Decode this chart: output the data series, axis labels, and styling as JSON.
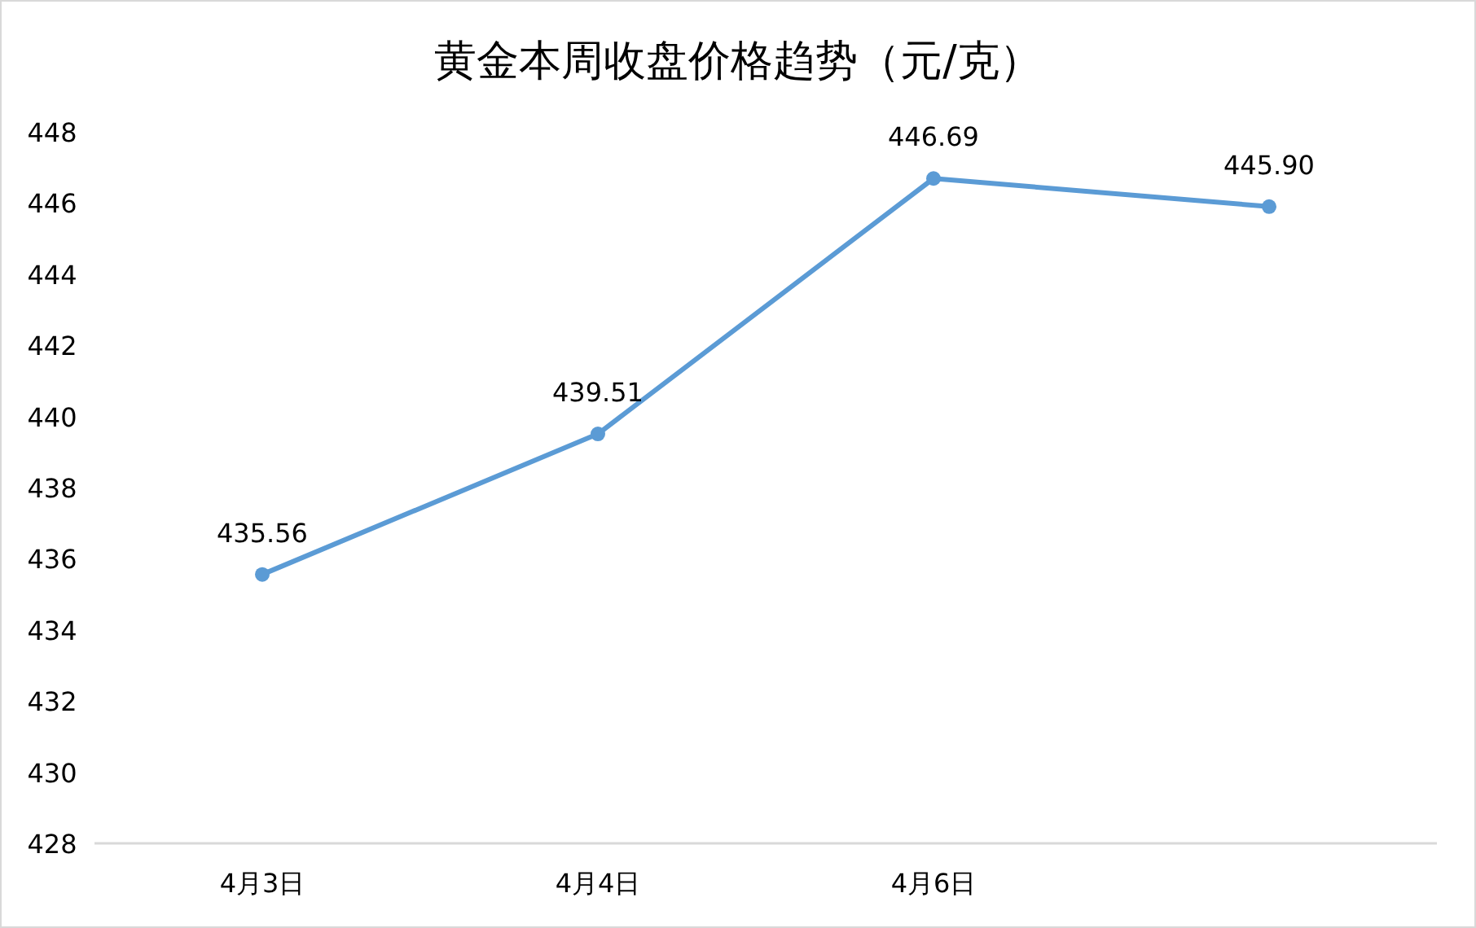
{
  "chart_data": {
    "type": "line",
    "title": "黄金本周收盘价格趋势（元/克）",
    "categories": [
      "4月3日",
      "4月4日",
      "4月6日",
      null
    ],
    "series": [
      {
        "color": "#5b9bd5",
        "values": [
          435.56,
          439.51,
          446.69,
          445.9
        ]
      }
    ],
    "value_labels": [
      "435.56",
      "439.51",
      "446.69",
      "445.90"
    ],
    "ylim": [
      428,
      448
    ],
    "yticks": [
      428,
      430,
      432,
      434,
      436,
      438,
      440,
      442,
      444,
      446,
      448
    ],
    "marker": "circle",
    "line_style": "solid"
  }
}
